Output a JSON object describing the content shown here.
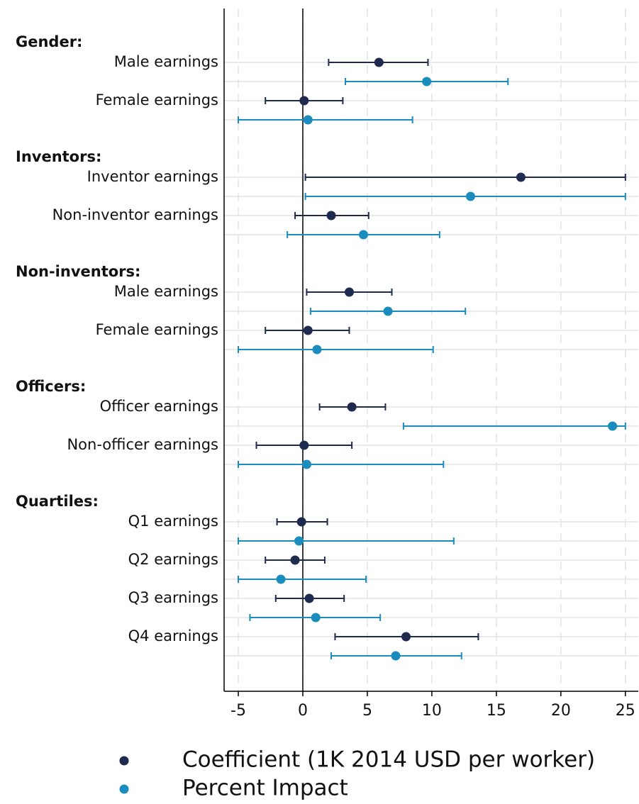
{
  "chart_data": {
    "type": "coefplot",
    "groups": [
      {
        "title": "Gender:",
        "categories": [
          "Male earnings",
          "Female earnings"
        ]
      },
      {
        "title": "Inventors:",
        "categories": [
          "Inventor earnings",
          "Non-inventor earnings"
        ]
      },
      {
        "title": "Non-inventors:",
        "categories": [
          "Male earnings",
          "Female earnings"
        ]
      },
      {
        "title": "Officers:",
        "categories": [
          "Officer earnings",
          "Non-officer earnings"
        ]
      },
      {
        "title": "Quartiles:",
        "categories": [
          "Q1 earnings",
          "Q2 earnings",
          "Q3 earnings",
          "Q4 earnings"
        ]
      }
    ],
    "series": [
      {
        "name": "Coefficient (1K 2014 USD per worker)",
        "color": "#1f2a4f",
        "values": [
          5.9,
          0.1,
          16.9,
          2.2,
          3.6,
          0.4,
          3.8,
          0.1,
          -0.1,
          -0.6,
          0.5,
          8.0
        ],
        "lower": [
          2.0,
          -2.9,
          0.2,
          -0.6,
          0.3,
          -2.9,
          1.3,
          -3.6,
          -2.0,
          -2.9,
          -2.1,
          2.5
        ],
        "upper": [
          9.7,
          3.1,
          25,
          5.1,
          6.9,
          3.6,
          6.4,
          3.8,
          1.9,
          1.7,
          3.2,
          13.6
        ]
      },
      {
        "name": "Percent Impact",
        "color": "#1a8cbd",
        "values": [
          9.6,
          0.4,
          13.0,
          4.7,
          6.6,
          1.1,
          24.0,
          0.3,
          -0.3,
          -1.7,
          1.0,
          7.2
        ],
        "lower": [
          3.3,
          -5,
          0.2,
          -1.2,
          0.6,
          -5,
          7.8,
          -5,
          -5,
          -5,
          -4.1,
          2.2
        ],
        "upper": [
          15.9,
          8.5,
          25,
          10.6,
          12.6,
          10.1,
          25,
          10.9,
          11.7,
          4.9,
          6.0,
          12.3
        ]
      }
    ],
    "xlim": [
      -6.1,
      26
    ],
    "xticks": [
      -5,
      0,
      5,
      10,
      15,
      20,
      25
    ],
    "grid": true
  }
}
